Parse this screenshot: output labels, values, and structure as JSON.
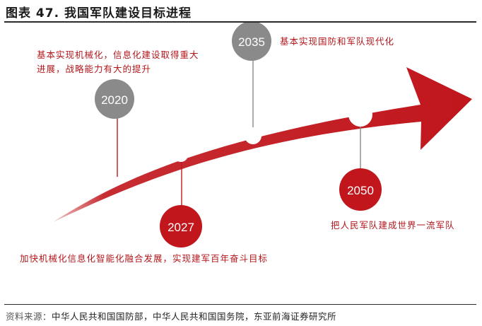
{
  "figure": {
    "title": "图表 47. 我国军队建设目标进程",
    "source_label": "资料来源：",
    "source_text": "中华人民共和国国防部，中华人民共和国国务院，东亚前海证券研究所"
  },
  "milestones": [
    {
      "year": "2020",
      "description_lines": [
        "基本实现机械化，信息化建设取得重大",
        "进展，战略能力有大的提升"
      ],
      "bubble_color": "#8a8a8a"
    },
    {
      "year": "2027",
      "description_lines": [
        "加快机械化信息化智能化融合发展，实现建军百年奋斗目标"
      ],
      "bubble_color": "#c0161c"
    },
    {
      "year": "2035",
      "description_lines": [
        "基本实现国防和军队现代化"
      ],
      "bubble_color": "#8a8a8a"
    },
    {
      "year": "2050",
      "description_lines": [
        "把人民军队建成世界一流军队"
      ],
      "bubble_color": "#c0161c"
    }
  ],
  "colors": {
    "arrow": "#c0161c",
    "text_red": "#b3171c",
    "gray_bubble": "#8a8a8a",
    "red_bubble": "#c0161c"
  }
}
